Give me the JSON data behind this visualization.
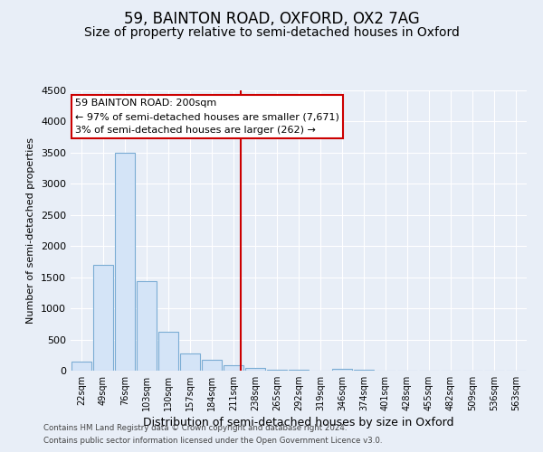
{
  "title": "59, BAINTON ROAD, OXFORD, OX2 7AG",
  "subtitle": "Size of property relative to semi-detached houses in Oxford",
  "xlabel": "Distribution of semi-detached houses by size in Oxford",
  "ylabel": "Number of semi-detached properties",
  "bar_labels": [
    "22sqm",
    "49sqm",
    "76sqm",
    "103sqm",
    "130sqm",
    "157sqm",
    "184sqm",
    "211sqm",
    "238sqm",
    "265sqm",
    "292sqm",
    "319sqm",
    "346sqm",
    "374sqm",
    "401sqm",
    "428sqm",
    "455sqm",
    "482sqm",
    "509sqm",
    "536sqm",
    "563sqm"
  ],
  "bar_values": [
    140,
    1700,
    3500,
    1440,
    620,
    270,
    175,
    90,
    40,
    20,
    10,
    5,
    30,
    20,
    0,
    0,
    0,
    0,
    0,
    0,
    0
  ],
  "bar_color": "#d4e4f7",
  "bar_edge_color": "#7badd4",
  "vertical_line_x": 7.35,
  "vertical_line_color": "#cc0000",
  "annotation_title": "59 BAINTON ROAD: 200sqm",
  "annotation_line1": "← 97% of semi-detached houses are smaller (7,671)",
  "annotation_line2": "3% of semi-detached houses are larger (262) →",
  "annotation_box_facecolor": "#ffffff",
  "annotation_border_color": "#cc0000",
  "ylim": [
    0,
    4500
  ],
  "yticks": [
    0,
    500,
    1000,
    1500,
    2000,
    2500,
    3000,
    3500,
    4000,
    4500
  ],
  "bg_color": "#e8eef7",
  "plot_bg_color": "#e8eef7",
  "grid_color": "#ffffff",
  "title_fontsize": 12,
  "subtitle_fontsize": 10,
  "footer_line1": "Contains HM Land Registry data © Crown copyright and database right 2024.",
  "footer_line2": "Contains public sector information licensed under the Open Government Licence v3.0."
}
